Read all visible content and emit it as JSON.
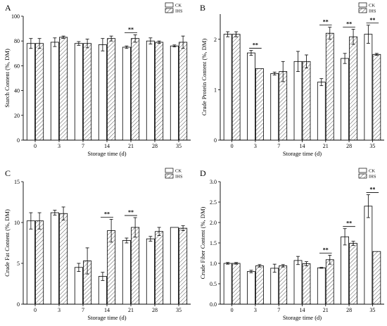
{
  "chart_data": [
    {
      "panel": "A",
      "type": "bar",
      "categories": [
        "0",
        "3",
        "7",
        "14",
        "21",
        "28",
        "35"
      ],
      "xlabel": "Storage time (d)",
      "ylabel": "Starch Content (%, DM)",
      "ylim": [
        0,
        100
      ],
      "yticks": [
        0,
        20,
        40,
        60,
        80,
        100
      ],
      "legend": "top-right",
      "series": [
        {
          "name": "CK",
          "values": [
            78,
            79,
            78,
            77,
            75,
            80,
            76
          ],
          "errors": [
            4,
            3.5,
            1.5,
            5,
            1,
            2.5,
            0.8
          ]
        },
        {
          "name": "IHS",
          "values": [
            78,
            83,
            78,
            82,
            82,
            79,
            79
          ],
          "errors": [
            4,
            1,
            3.5,
            2,
            3,
            1,
            5
          ]
        }
      ],
      "significance": [
        {
          "category": "21",
          "label": "**"
        }
      ]
    },
    {
      "panel": "B",
      "type": "bar",
      "categories": [
        "0",
        "3",
        "7",
        "14",
        "21",
        "28",
        "35"
      ],
      "xlabel": "Storage time (d)",
      "ylabel": "Crude Protein Content (%, DM)",
      "ylim": [
        0,
        2.5
      ],
      "yticks": [
        0,
        1,
        2
      ],
      "legend": "top-right",
      "series": [
        {
          "name": "CK",
          "values": [
            2.1,
            1.73,
            1.32,
            1.56,
            1.15,
            1.62,
            2.1
          ],
          "errors": [
            0.05,
            0.05,
            0.03,
            0.2,
            0.07,
            0.1,
            0.18
          ]
        },
        {
          "name": "IHS",
          "values": [
            2.1,
            1.42,
            1.36,
            1.56,
            2.12,
            2.05,
            1.7
          ],
          "errors": [
            0.05,
            0,
            0.2,
            0.13,
            0.12,
            0.15,
            0.02
          ]
        }
      ],
      "significance": [
        {
          "category": "3",
          "label": "**"
        },
        {
          "category": "21",
          "label": "**"
        },
        {
          "category": "28",
          "label": "**"
        },
        {
          "category": "35",
          "label": "**"
        }
      ]
    },
    {
      "panel": "C",
      "type": "bar",
      "categories": [
        "0",
        "3",
        "7",
        "14",
        "21",
        "28",
        "35"
      ],
      "xlabel": "Storage time (d)",
      "ylabel": "Crude Fat Content (%, DM)",
      "ylim": [
        0,
        15
      ],
      "yticks": [
        0,
        5,
        10,
        15
      ],
      "legend": "top-right",
      "series": [
        {
          "name": "CK",
          "values": [
            10.2,
            11.2,
            4.5,
            3.4,
            7.8,
            8.0,
            9.4
          ],
          "errors": [
            1.0,
            0.3,
            0.5,
            0.5,
            0.3,
            0.3,
            0
          ]
        },
        {
          "name": "IHS",
          "values": [
            10.2,
            11.1,
            5.3,
            9.0,
            9.4,
            8.9,
            9.3
          ],
          "errors": [
            1.0,
            0.8,
            1.6,
            1.4,
            1.2,
            0.5,
            0.3
          ]
        }
      ],
      "significance": [
        {
          "category": "14",
          "label": "**"
        },
        {
          "category": "21",
          "label": "**"
        }
      ]
    },
    {
      "panel": "D",
      "type": "bar",
      "categories": [
        "0",
        "3",
        "7",
        "14",
        "21",
        "28",
        "35"
      ],
      "xlabel": "Storage time (d)",
      "ylabel": "Crude Fiber Content (%, DM)",
      "ylim": [
        0,
        3.0
      ],
      "yticks": [
        0,
        0.5,
        1.0,
        1.5,
        2.0,
        2.5,
        3.0
      ],
      "legend": "top-right",
      "series": [
        {
          "name": "CK",
          "values": [
            1.0,
            0.8,
            0.88,
            1.07,
            0.89,
            1.65,
            2.4
          ],
          "errors": [
            0.02,
            0.03,
            0.1,
            0.1,
            0.01,
            0.2,
            0.28
          ]
        },
        {
          "name": "IHS",
          "values": [
            1.0,
            0.94,
            0.94,
            0.99,
            1.09,
            1.49,
            1.29
          ],
          "errors": [
            0.02,
            0.03,
            0.03,
            0.05,
            0.11,
            0.05,
            0
          ]
        }
      ],
      "significance": [
        {
          "category": "21",
          "label": "**"
        },
        {
          "category": "28",
          "label": "**"
        },
        {
          "category": "35",
          "label": "**"
        }
      ]
    }
  ]
}
